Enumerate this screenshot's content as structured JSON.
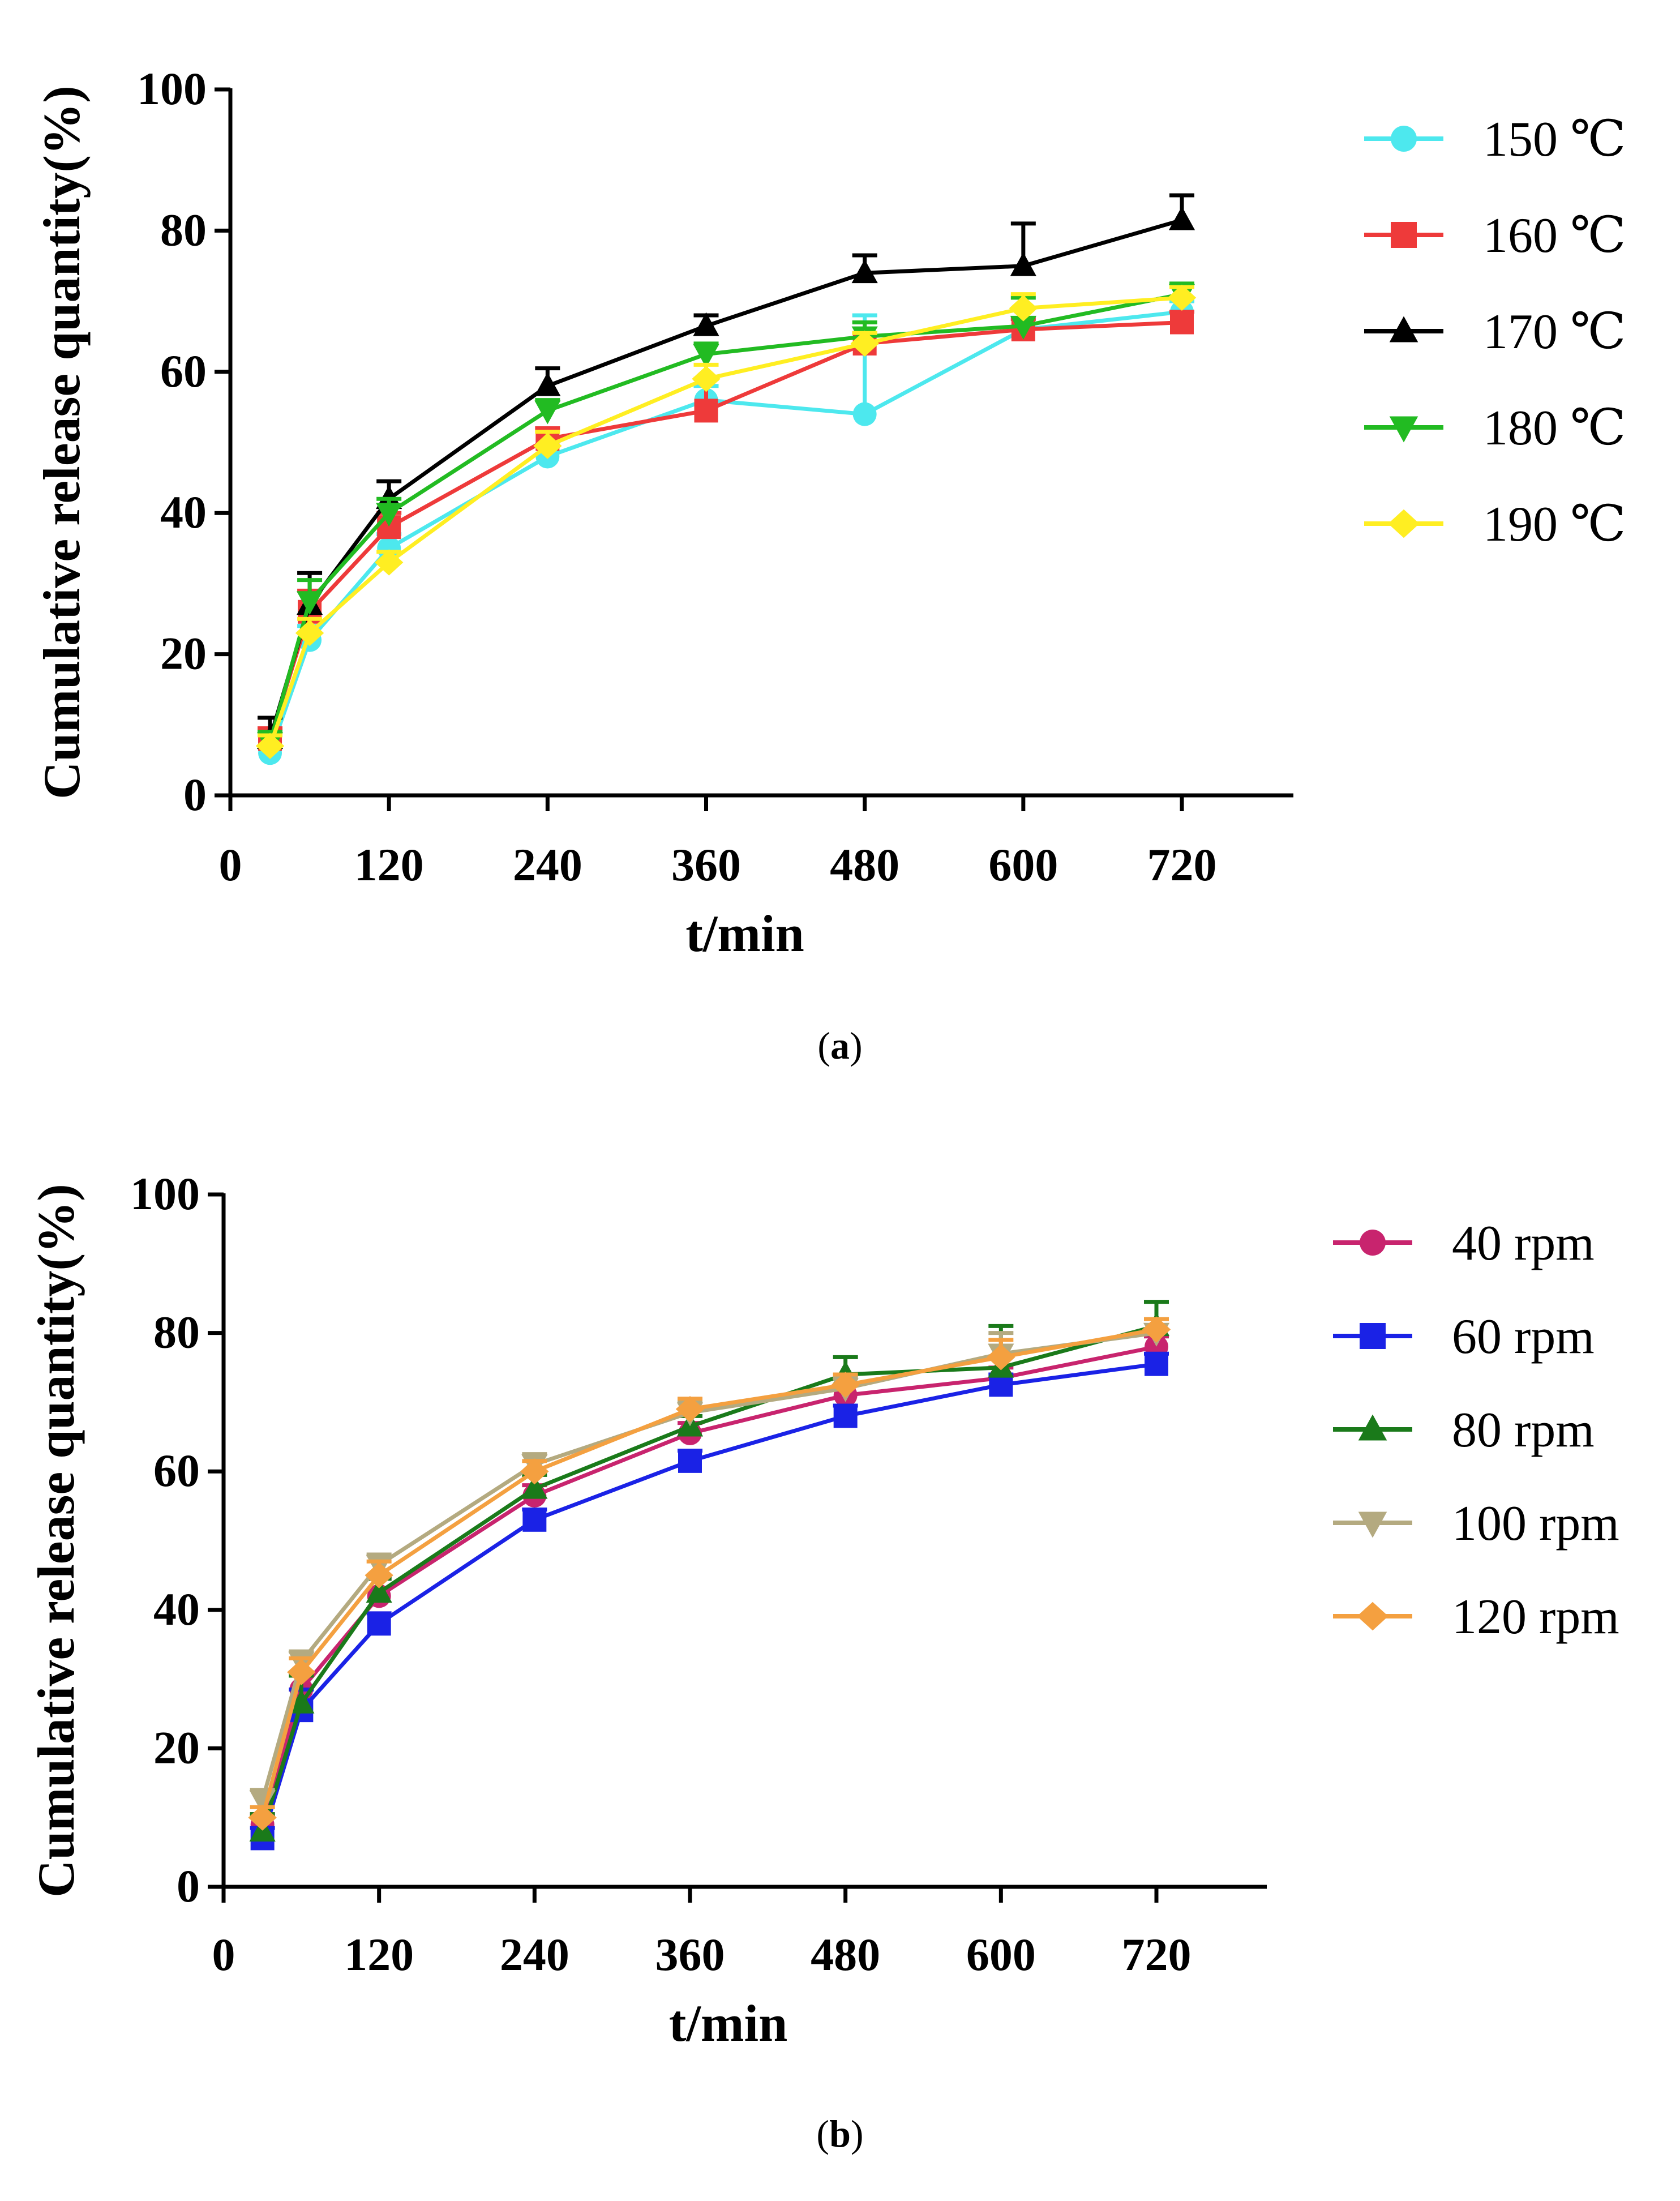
{
  "chart_data": [
    {
      "panel": "a",
      "caption_label": "a",
      "type": "line",
      "ylabel": "Cumulative release quantity(%)",
      "xlabel": "t/min",
      "xlim": [
        0,
        780
      ],
      "ylim": [
        0,
        100
      ],
      "xticks": [
        0,
        120,
        240,
        360,
        480,
        600,
        720
      ],
      "yticks": [
        0,
        20,
        40,
        60,
        80,
        100
      ],
      "x": [
        30,
        60,
        120,
        240,
        360,
        480,
        600,
        720
      ],
      "legend_position": "right",
      "series": [
        {
          "name": "150 ℃",
          "color": "#4de8ee",
          "marker": "circle",
          "values": [
            6,
            22,
            35,
            48,
            56,
            54,
            66,
            68.5
          ],
          "errors": [
            1,
            2,
            2,
            1.5,
            2,
            14,
            1.5,
            1.5
          ]
        },
        {
          "name": "160 ℃",
          "color": "#ee3a3a",
          "marker": "square",
          "values": [
            8,
            26,
            38,
            50.5,
            54.5,
            64,
            66,
            67
          ],
          "errors": [
            1.5,
            3,
            2,
            1.5,
            4.5,
            1.5,
            1.5,
            1.5
          ]
        },
        {
          "name": "170 ℃",
          "color": "#000000",
          "marker": "triangle-up",
          "values": [
            8,
            27,
            42,
            58,
            66.5,
            74,
            75,
            81.5
          ],
          "errors": [
            3,
            4.5,
            2.5,
            2.5,
            1.5,
            2.5,
            6,
            3.5
          ]
        },
        {
          "name": "180 ℃",
          "color": "#22bb22",
          "marker": "triangle-down",
          "values": [
            7.5,
            27.5,
            40,
            54.5,
            62.5,
            65,
            66.5,
            71
          ],
          "errors": [
            1.5,
            3,
            2,
            1.5,
            1.5,
            2,
            4,
            1.5
          ]
        },
        {
          "name": "190 ℃",
          "color": "#ffee22",
          "marker": "diamond",
          "values": [
            7,
            23,
            33,
            49.5,
            59,
            64,
            69,
            70.5
          ],
          "errors": [
            1.5,
            2,
            1.5,
            2,
            2,
            1.5,
            2,
            1.5
          ]
        }
      ]
    },
    {
      "panel": "b",
      "caption_label": "b",
      "type": "line",
      "ylabel": "Cumulative release quantity(%)",
      "xlabel": "t/min",
      "xlim": [
        0,
        780
      ],
      "ylim": [
        0,
        100
      ],
      "xticks": [
        0,
        120,
        240,
        360,
        480,
        600,
        720
      ],
      "yticks": [
        0,
        20,
        40,
        60,
        80,
        100
      ],
      "x": [
        30,
        60,
        120,
        240,
        360,
        480,
        600,
        720
      ],
      "legend_position": "right",
      "series": [
        {
          "name": "40 rpm",
          "color": "#c8246e",
          "marker": "circle",
          "values": [
            9,
            28.5,
            42,
            56.5,
            65.5,
            71,
            73.5,
            78
          ],
          "errors": [
            1.5,
            2.5,
            2.5,
            1.5,
            1.5,
            1.5,
            1.5,
            1.5
          ]
        },
        {
          "name": "60 rpm",
          "color": "#1a22e6",
          "marker": "square",
          "values": [
            7,
            25.5,
            38,
            53,
            61.5,
            68,
            72.5,
            75.5
          ],
          "errors": [
            1.5,
            3,
            1.5,
            1.5,
            1.5,
            1.5,
            1.5,
            1.5
          ]
        },
        {
          "name": "80 rpm",
          "color": "#1a7a1a",
          "marker": "triangle-up",
          "values": [
            8,
            26.5,
            42.5,
            57.5,
            66.5,
            74,
            75,
            81
          ],
          "errors": [
            2.5,
            4,
            2,
            2,
            1.5,
            2.5,
            6,
            3.5
          ]
        },
        {
          "name": "100 rpm",
          "color": "#b4aa80",
          "marker": "triangle-down",
          "values": [
            12.5,
            32.5,
            46.5,
            61,
            68.5,
            72,
            77,
            80
          ],
          "errors": [
            1.5,
            1.5,
            1.5,
            1.5,
            1.5,
            1.5,
            3,
            2
          ]
        },
        {
          "name": "120 rpm",
          "color": "#f4a040",
          "marker": "diamond",
          "values": [
            10,
            31,
            45,
            60,
            69,
            72.5,
            76.5,
            80.5
          ],
          "errors": [
            1.5,
            2,
            2,
            1.5,
            1.5,
            1.5,
            2.5,
            1.5
          ]
        }
      ]
    }
  ]
}
